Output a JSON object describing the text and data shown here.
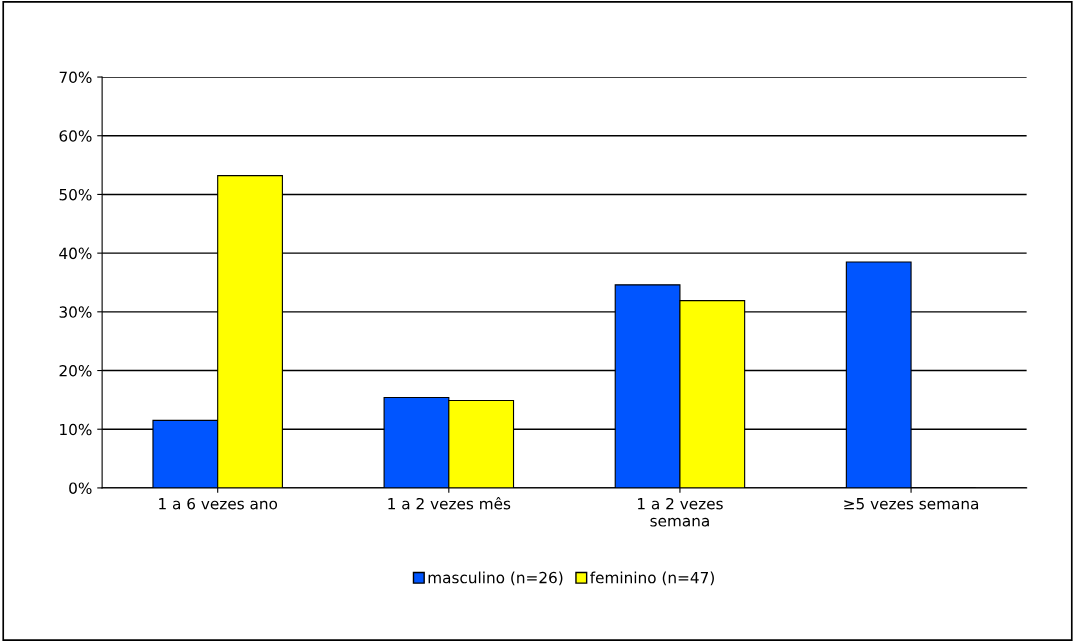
{
  "chart_data": {
    "type": "bar",
    "categories": [
      "1 a 6 vezes ano",
      "1 a 2 vezes mês",
      "1 a 2 vezes\nsemana",
      "≥5 vezes semana"
    ],
    "series": [
      {
        "name": "masculino (n=26)",
        "color": "#0055ff",
        "values": [
          11.5,
          15.4,
          34.6,
          38.5
        ]
      },
      {
        "name": "feminino (n=47)",
        "color": "#ffff00",
        "values": [
          53.2,
          14.9,
          31.9,
          0
        ]
      }
    ],
    "ylim": [
      0,
      70
    ],
    "yticks": [
      {
        "value": 0,
        "label": "0%"
      },
      {
        "value": 10,
        "label": "10%"
      },
      {
        "value": 20,
        "label": "20%"
      },
      {
        "value": 30,
        "label": "30%"
      },
      {
        "value": 40,
        "label": "40%"
      },
      {
        "value": 50,
        "label": "50%"
      },
      {
        "value": 60,
        "label": "60%"
      },
      {
        "value": 70,
        "label": "70%"
      }
    ],
    "grid": "y",
    "legend": "bottom"
  }
}
